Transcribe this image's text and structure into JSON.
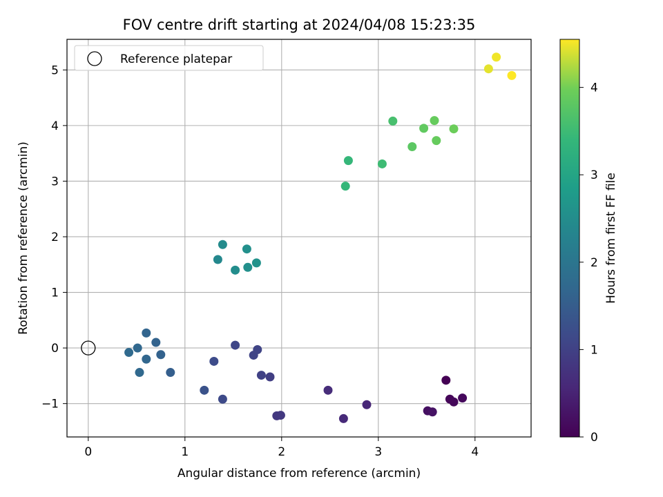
{
  "chart_data": {
    "type": "scatter",
    "title": "FOV centre drift starting at 2024/04/08 15:23:35",
    "xlabel": "Angular distance from reference (arcmin)",
    "ylabel": "Rotation from reference (arcmin)",
    "xlim": [
      -0.22,
      4.58
    ],
    "ylim": [
      -1.6,
      5.55
    ],
    "xticks": [
      0,
      1,
      2,
      3,
      4
    ],
    "yticks": [
      -1,
      0,
      1,
      2,
      3,
      4,
      5
    ],
    "grid": true,
    "legend": {
      "position": "top-left",
      "entries": [
        "Reference platepar"
      ]
    },
    "reference_point": {
      "x": 0,
      "y": 0
    },
    "colorbar": {
      "label": "Hours from first FF file",
      "range": [
        0,
        4.55
      ],
      "ticks": [
        0,
        1,
        2,
        3,
        4
      ],
      "colormap": "viridis"
    },
    "points": [
      {
        "x": 3.7,
        "y": -0.58,
        "c": 0.0
      },
      {
        "x": 3.74,
        "y": -0.92,
        "c": 0.08
      },
      {
        "x": 3.78,
        "y": -0.97,
        "c": 0.1
      },
      {
        "x": 3.87,
        "y": -0.9,
        "c": 0.12
      },
      {
        "x": 3.51,
        "y": -1.13,
        "c": 0.2
      },
      {
        "x": 3.56,
        "y": -1.15,
        "c": 0.25
      },
      {
        "x": 2.88,
        "y": -1.02,
        "c": 0.55
      },
      {
        "x": 2.64,
        "y": -1.27,
        "c": 0.6
      },
      {
        "x": 2.48,
        "y": -0.76,
        "c": 0.65
      },
      {
        "x": 1.95,
        "y": -1.22,
        "c": 0.85
      },
      {
        "x": 1.99,
        "y": -1.21,
        "c": 0.85
      },
      {
        "x": 1.88,
        "y": -0.52,
        "c": 0.95
      },
      {
        "x": 1.79,
        "y": -0.49,
        "c": 1.0
      },
      {
        "x": 1.71,
        "y": -0.13,
        "c": 1.05
      },
      {
        "x": 1.75,
        "y": -0.03,
        "c": 1.05
      },
      {
        "x": 1.52,
        "y": 0.05,
        "c": 1.1
      },
      {
        "x": 1.39,
        "y": -0.92,
        "c": 1.15
      },
      {
        "x": 1.3,
        "y": -0.24,
        "c": 1.2
      },
      {
        "x": 1.2,
        "y": -0.76,
        "c": 1.3
      },
      {
        "x": 0.85,
        "y": -0.44,
        "c": 1.55
      },
      {
        "x": 0.75,
        "y": -0.12,
        "c": 1.6
      },
      {
        "x": 0.7,
        "y": 0.1,
        "c": 1.62
      },
      {
        "x": 0.6,
        "y": 0.27,
        "c": 1.65
      },
      {
        "x": 0.6,
        "y": -0.2,
        "c": 1.68
      },
      {
        "x": 0.51,
        "y": 0.0,
        "c": 1.7
      },
      {
        "x": 0.53,
        "y": -0.44,
        "c": 1.72
      },
      {
        "x": 0.42,
        "y": -0.08,
        "c": 1.75
      },
      {
        "x": 1.34,
        "y": 1.59,
        "c": 2.4
      },
      {
        "x": 1.39,
        "y": 1.86,
        "c": 2.45
      },
      {
        "x": 1.52,
        "y": 1.4,
        "c": 2.5
      },
      {
        "x": 1.64,
        "y": 1.78,
        "c": 2.55
      },
      {
        "x": 1.65,
        "y": 1.45,
        "c": 2.55
      },
      {
        "x": 1.74,
        "y": 1.53,
        "c": 2.6
      },
      {
        "x": 2.66,
        "y": 2.91,
        "c": 3.4
      },
      {
        "x": 2.69,
        "y": 3.37,
        "c": 3.4
      },
      {
        "x": 3.04,
        "y": 3.31,
        "c": 3.5
      },
      {
        "x": 3.15,
        "y": 4.08,
        "c": 3.6
      },
      {
        "x": 3.35,
        "y": 3.62,
        "c": 3.8
      },
      {
        "x": 3.47,
        "y": 3.95,
        "c": 3.85
      },
      {
        "x": 3.58,
        "y": 4.09,
        "c": 3.9
      },
      {
        "x": 3.6,
        "y": 3.73,
        "c": 3.9
      },
      {
        "x": 3.78,
        "y": 3.94,
        "c": 3.95
      },
      {
        "x": 4.14,
        "y": 5.02,
        "c": 4.45
      },
      {
        "x": 4.22,
        "y": 5.23,
        "c": 4.5
      },
      {
        "x": 4.38,
        "y": 4.9,
        "c": 4.55
      }
    ]
  }
}
